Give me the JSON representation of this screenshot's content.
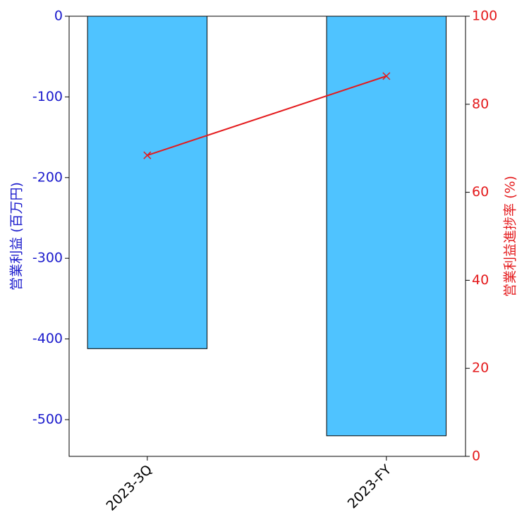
{
  "chart_data": {
    "type": "bar",
    "categories": [
      "2023-3Q",
      "2023-FY"
    ],
    "series": [
      {
        "type": "bar",
        "color": "#4fc3ff",
        "values": [
          -412,
          -520
        ]
      },
      {
        "type": "line",
        "color": "#e41a1c",
        "axis": "y2",
        "values": [
          68.4,
          86.4
        ]
      }
    ],
    "ylabel": "営業利益 (百万円)",
    "ylabel_color": "#1a1acc",
    "y2label": "営業利益進捗率 (%)",
    "y2label_color": "#e41a1c",
    "ylim": [
      -545.5,
      0
    ],
    "yticks": [
      0,
      -100,
      -200,
      -300,
      -400,
      -500
    ],
    "y2lim": [
      0,
      100
    ],
    "y2ticks": [
      0,
      20,
      40,
      60,
      80,
      100
    ]
  }
}
